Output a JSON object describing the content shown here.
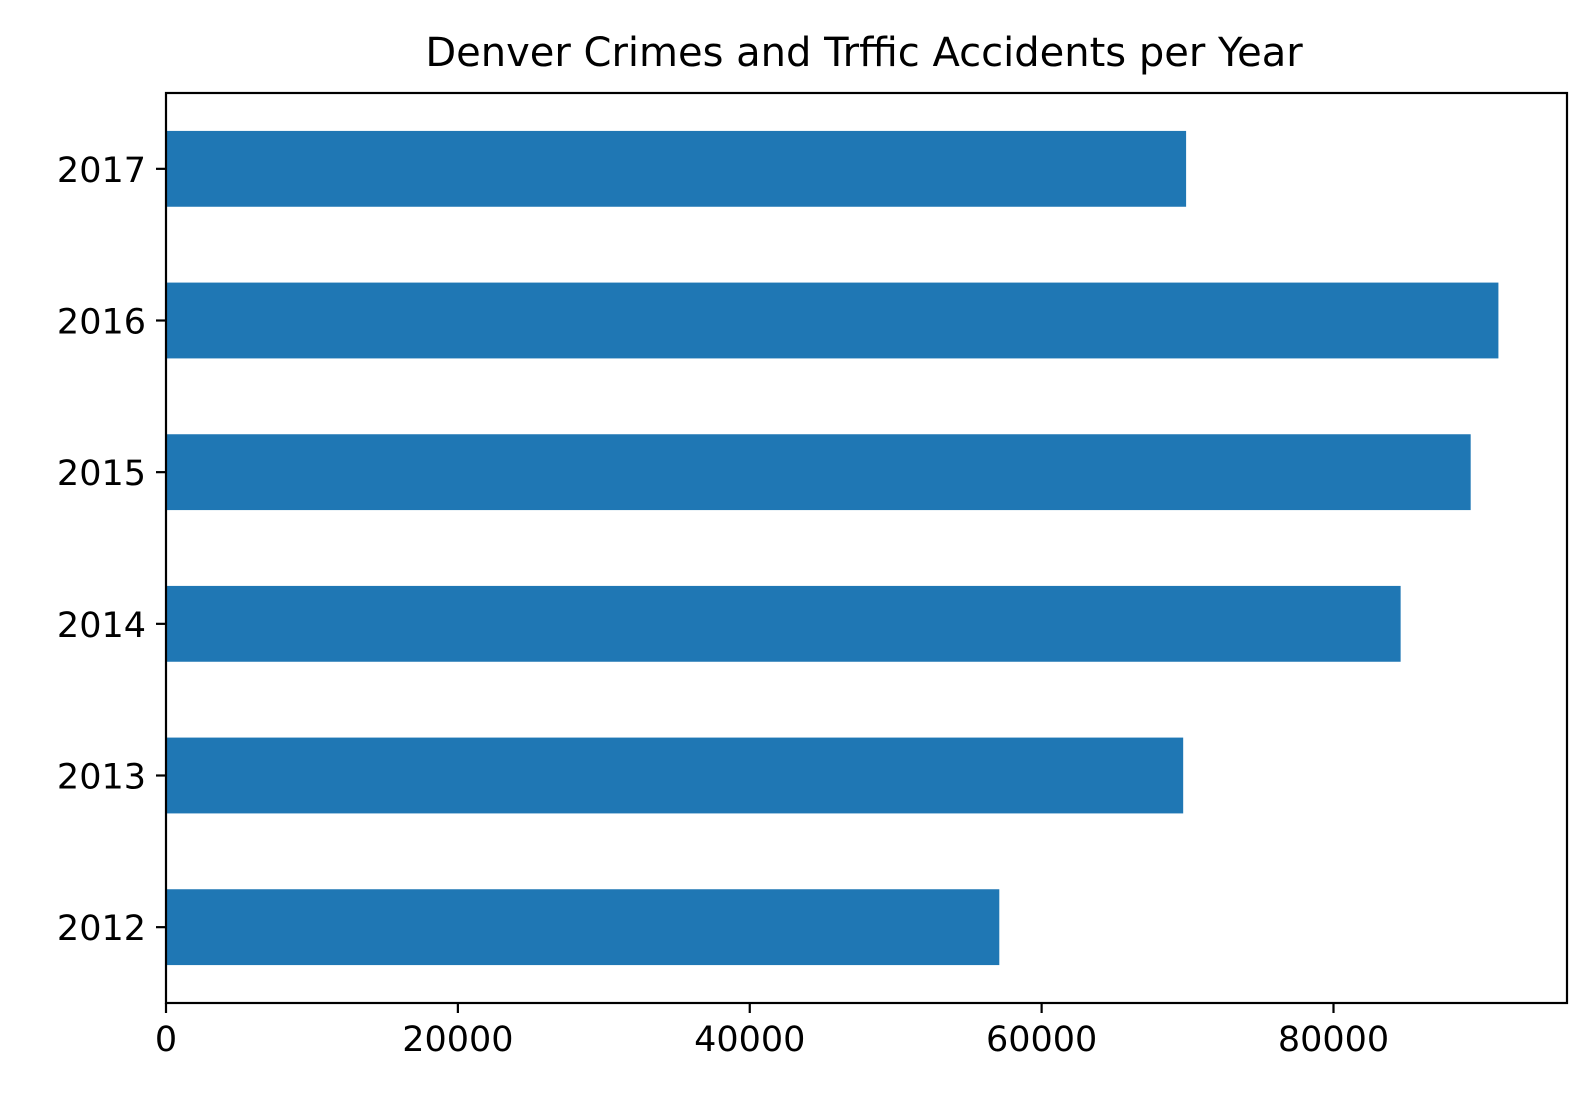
{
  "chart_data": {
    "type": "bar",
    "orientation": "horizontal",
    "title": "Denver Crimes and Trffic Accidents per Year",
    "xlabel": "",
    "ylabel": "",
    "categories": [
      "2012",
      "2013",
      "2014",
      "2015",
      "2016",
      "2017"
    ],
    "values": [
      57100,
      69700,
      84600,
      89400,
      91300,
      69900
    ],
    "xlim": [
      0,
      96000
    ],
    "xticks": [
      0,
      20000,
      40000,
      60000,
      80000
    ],
    "xtick_labels": [
      "0",
      "20000",
      "40000",
      "60000",
      "80000"
    ],
    "grid": false,
    "legend": "none",
    "colors": {
      "bar": "#1f77b4",
      "axes": "#000000",
      "background": "#ffffff"
    }
  }
}
